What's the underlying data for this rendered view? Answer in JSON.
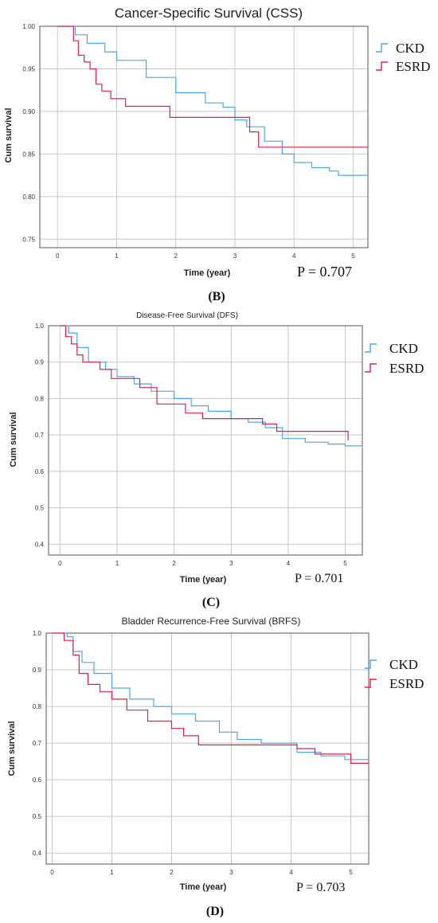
{
  "colors": {
    "ckd": "#4da6e8",
    "esrd": "#e0204a",
    "grid": "#c8c8c8",
    "frame": "#555555"
  },
  "panels": [
    {
      "panel_label": "(B)",
      "p_value": "P = 0.707"
    },
    {
      "panel_label": "(C)",
      "p_value": "P = 0.701"
    },
    {
      "panel_label": "(D)",
      "p_value": "P = 0.703"
    }
  ],
  "chart_data": [
    {
      "type": "line",
      "title": "Cancer-Specific Survival (CSS)",
      "xlabel": "Time (year)",
      "ylabel": "Cum survival",
      "xlim": [
        -0.3,
        5.25
      ],
      "ylim": [
        0.74,
        1.0
      ],
      "xticks": [
        "0",
        "1",
        "2",
        "3",
        "4",
        "5"
      ],
      "yticks": [
        "1.00",
        "0.95",
        "0.90",
        "0.85",
        "0.80",
        "0.75"
      ],
      "legend": "right",
      "series": [
        {
          "name": "CKD",
          "color": "#4da6e8",
          "x": [
            0,
            0.3,
            0.5,
            0.8,
            1.0,
            1.5,
            2.0,
            2.5,
            2.8,
            3.0,
            3.2,
            3.5,
            3.8,
            4.0,
            4.3,
            4.6,
            4.75,
            5.25
          ],
          "y": [
            1.0,
            0.99,
            0.98,
            0.97,
            0.96,
            0.94,
            0.922,
            0.91,
            0.905,
            0.89,
            0.882,
            0.865,
            0.85,
            0.84,
            0.834,
            0.83,
            0.825,
            0.825
          ]
        },
        {
          "name": "ESRD",
          "color": "#e0204a",
          "x": [
            0,
            0.27,
            0.35,
            0.45,
            0.55,
            0.65,
            0.75,
            0.9,
            1.15,
            1.9,
            3.25,
            3.4,
            5.25
          ],
          "y": [
            1.0,
            0.983,
            0.966,
            0.958,
            0.95,
            0.932,
            0.924,
            0.915,
            0.906,
            0.893,
            0.876,
            0.858,
            0.858
          ]
        }
      ]
    },
    {
      "type": "line",
      "title": "Disease-Free Survival (DFS)",
      "xlabel": "Time (year)",
      "ylabel": "Cum survival",
      "xlim": [
        -0.2,
        5.3
      ],
      "ylim": [
        0.37,
        1.0
      ],
      "xticks": [
        "0",
        "1",
        "2",
        "3",
        "4",
        "5"
      ],
      "yticks": [
        "1.0",
        "0.9",
        "0.8",
        "0.7",
        "0.6",
        "0.5",
        "0.4"
      ],
      "legend": "right",
      "series": [
        {
          "name": "CKD",
          "color": "#4da6e8",
          "x": [
            0,
            0.15,
            0.3,
            0.5,
            0.8,
            1.0,
            1.3,
            1.6,
            2.0,
            2.3,
            2.6,
            3.0,
            3.3,
            3.6,
            3.9,
            4.3,
            4.7,
            5.0,
            5.3
          ],
          "y": [
            1.0,
            0.98,
            0.94,
            0.9,
            0.88,
            0.86,
            0.84,
            0.82,
            0.8,
            0.78,
            0.765,
            0.745,
            0.735,
            0.72,
            0.69,
            0.68,
            0.675,
            0.67,
            0.663
          ]
        },
        {
          "name": "ESRD",
          "color": "#e0204a",
          "x": [
            0,
            0.1,
            0.2,
            0.3,
            0.4,
            0.7,
            0.9,
            1.4,
            1.7,
            2.2,
            2.5,
            3.55,
            3.8,
            5.05
          ],
          "y": [
            1.0,
            0.97,
            0.95,
            0.92,
            0.9,
            0.88,
            0.855,
            0.83,
            0.785,
            0.76,
            0.745,
            0.73,
            0.71,
            0.685
          ]
        }
      ]
    },
    {
      "type": "line",
      "title": "Bladder Recurrence-Free Survival (BRFS)",
      "xlabel": "Time (year)",
      "ylabel": "Cum survival",
      "xlim": [
        -0.1,
        5.3
      ],
      "ylim": [
        0.37,
        1.0
      ],
      "xticks": [
        "0",
        "1",
        "2",
        "3",
        "4",
        "5"
      ],
      "yticks": [
        "1.0",
        "0.9",
        "0.8",
        "0.7",
        "0.6",
        "0.5",
        "0.4"
      ],
      "legend": "right",
      "series": [
        {
          "name": "CKD",
          "color": "#4da6e8",
          "x": [
            0,
            0.25,
            0.35,
            0.5,
            0.7,
            1.0,
            1.3,
            1.7,
            2.0,
            2.4,
            2.8,
            3.1,
            3.5,
            4.1,
            4.5,
            4.9,
            5.3
          ],
          "y": [
            1.0,
            0.99,
            0.95,
            0.92,
            0.89,
            0.85,
            0.82,
            0.8,
            0.78,
            0.76,
            0.73,
            0.71,
            0.7,
            0.675,
            0.665,
            0.655,
            0.655
          ]
        },
        {
          "name": "ESRD",
          "color": "#e0204a",
          "x": [
            0,
            0.2,
            0.35,
            0.45,
            0.6,
            0.8,
            1.0,
            1.25,
            1.6,
            2.0,
            2.2,
            2.45,
            4.1,
            4.4,
            5.0,
            5.3
          ],
          "y": [
            1.0,
            0.98,
            0.94,
            0.89,
            0.86,
            0.84,
            0.82,
            0.79,
            0.76,
            0.74,
            0.72,
            0.695,
            0.685,
            0.67,
            0.645,
            0.645
          ]
        }
      ]
    }
  ]
}
